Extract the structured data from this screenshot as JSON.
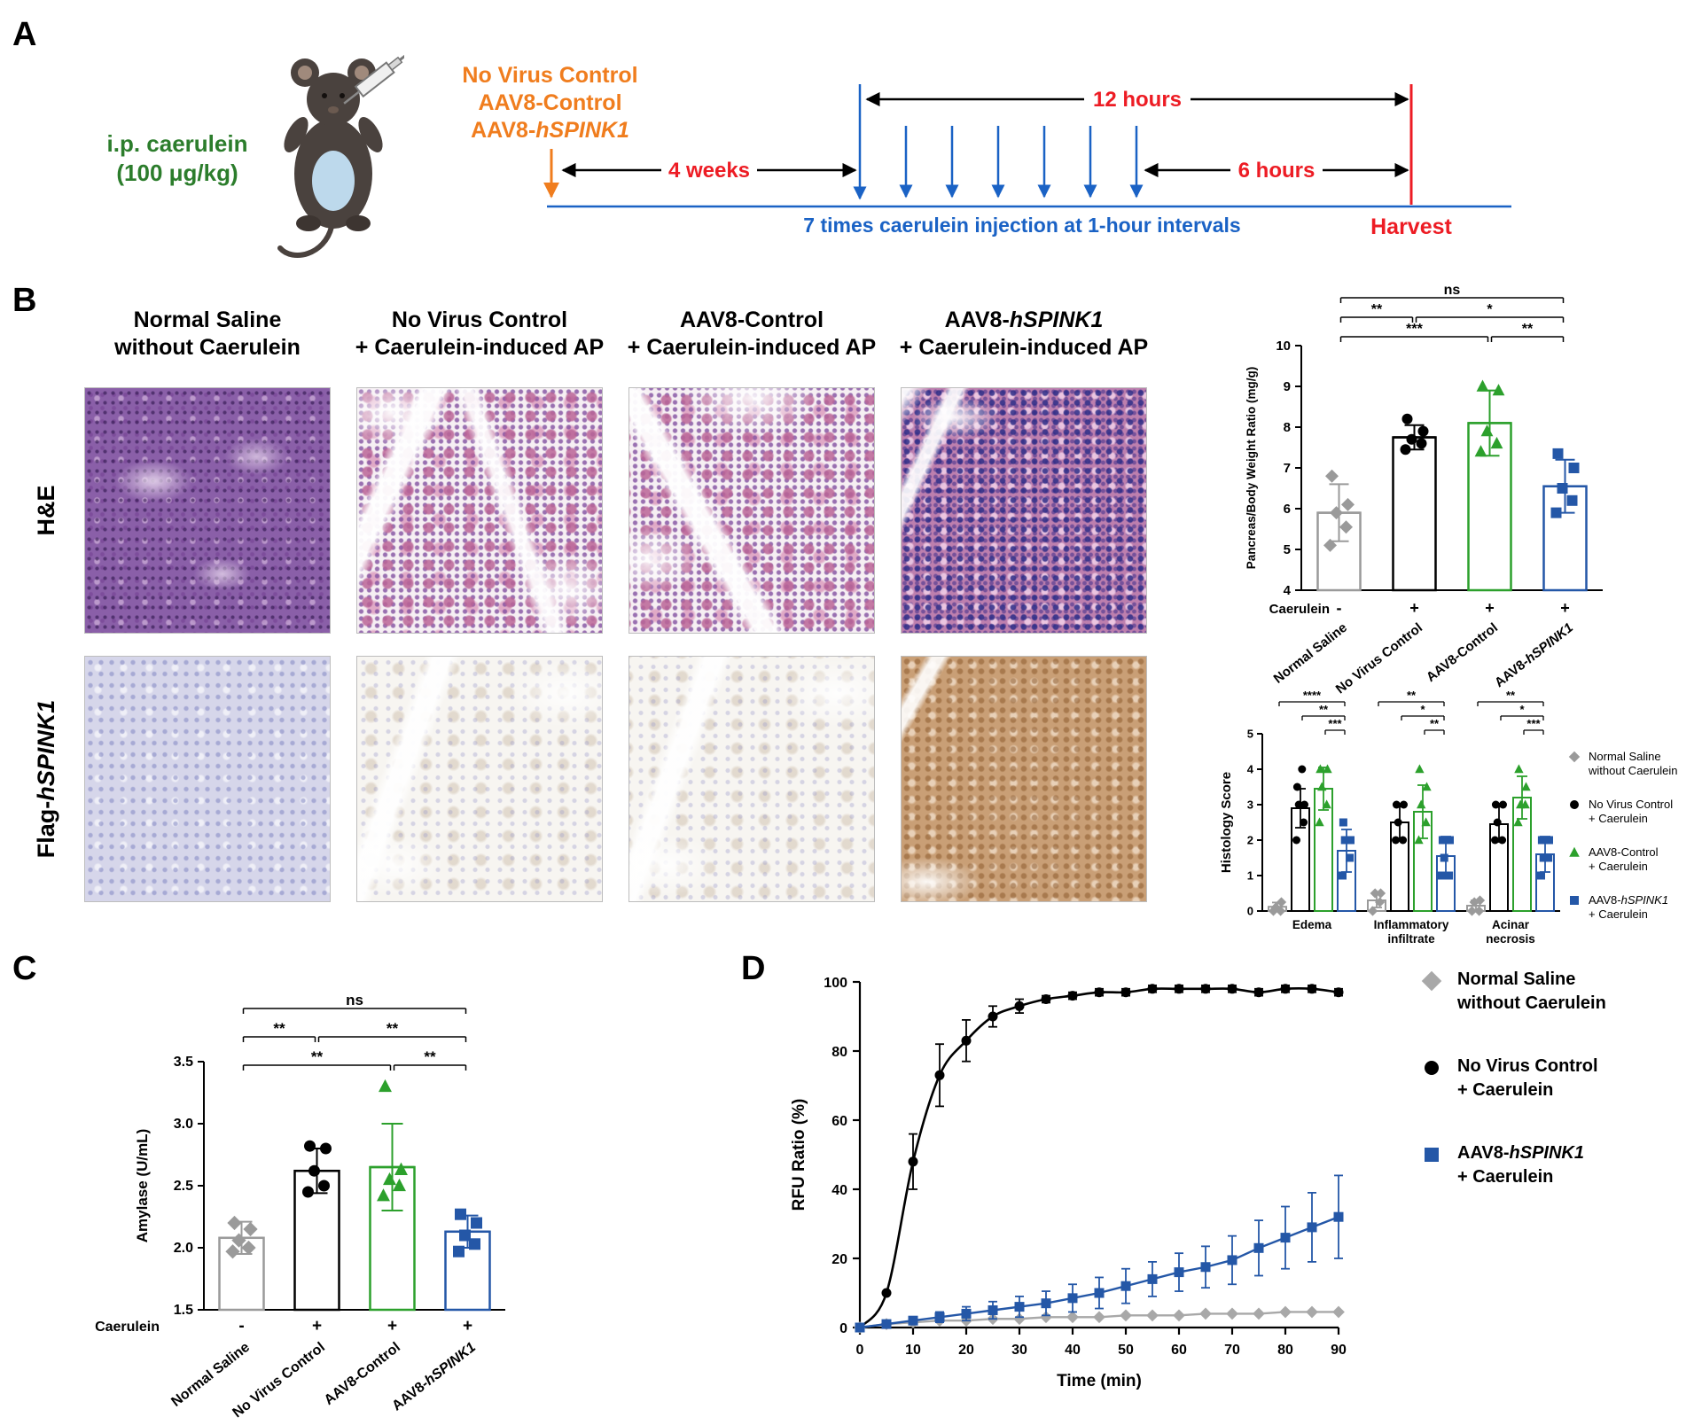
{
  "panel_a": {
    "label": "A",
    "ip_line1": "i.p. caerulein",
    "ip_line2": "(100 μg/kg)",
    "vectors": [
      "No Virus Control",
      "AAV8-Control",
      "AAV8-hSPINK1"
    ],
    "span_4w": "4 weeks",
    "span_12h": "12 hours",
    "span_6h": "6 hours",
    "injection_note": "7 times caerulein injection at 1-hour intervals",
    "harvest": "Harvest"
  },
  "panel_b": {
    "label": "B",
    "columns": [
      [
        "Normal Saline",
        "without Caerulein"
      ],
      [
        "No Virus Control",
        "+ Caerulein-induced AP"
      ],
      [
        "AAV8-Control",
        "+ Caerulein-induced AP"
      ],
      [
        "AAV8-hSPINK1",
        "+ Caerulein-induced AP"
      ]
    ],
    "rows": [
      "H&E",
      "Flag-hSPINK1"
    ]
  },
  "panel_c": {
    "label": "C"
  },
  "panel_d": {
    "label": "D"
  },
  "chart_data": [
    {
      "id": "pbw",
      "type": "bar",
      "ylabel": "Pancreas/Body Weight Ratio (mg/g)",
      "ylim": [
        4,
        10
      ],
      "yticks": [
        "4",
        "5",
        "6",
        "7",
        "8",
        "9",
        "10"
      ],
      "categories": [
        "Normal Saline",
        "No Virus Control",
        "AAV8-Control",
        "AAV8-hSPINK1"
      ],
      "colors": [
        "#9a9a9a",
        "#000000",
        "#2ca02c",
        "#2457a7"
      ],
      "markers": [
        "diamond",
        "circle",
        "triangle",
        "square"
      ],
      "values": [
        5.9,
        7.75,
        8.1,
        6.55
      ],
      "errors": [
        0.7,
        0.3,
        0.8,
        0.65
      ],
      "points": [
        [
          5.1,
          5.55,
          5.9,
          6.1,
          6.8
        ],
        [
          7.45,
          7.6,
          7.7,
          7.9,
          8.2
        ],
        [
          7.4,
          7.6,
          7.9,
          8.9,
          9.0
        ],
        [
          5.9,
          6.2,
          6.5,
          7.0,
          7.35
        ]
      ],
      "caerulein_label": "Caerulein",
      "caerulein": [
        "-",
        "+",
        "+",
        "+"
      ],
      "significance": [
        {
          "from": 0,
          "to": 3,
          "label": "ns",
          "level": 0
        },
        {
          "from": 0,
          "to": 1,
          "label": "**",
          "level": 1
        },
        {
          "from": 1,
          "to": 3,
          "label": "*",
          "level": 1
        },
        {
          "from": 0,
          "to": 2,
          "label": "***",
          "level": 2
        },
        {
          "from": 2,
          "to": 3,
          "label": "**",
          "level": 2
        }
      ]
    },
    {
      "id": "histology",
      "type": "grouped-bar",
      "ylabel": "Histology Score",
      "ylim": [
        0,
        5
      ],
      "yticks": [
        "0",
        "1",
        "2",
        "3",
        "4",
        "5"
      ],
      "groups": [
        [
          "Edema"
        ],
        [
          "Inflammatory",
          "infiltrate"
        ],
        [
          "Acinar",
          "necrosis"
        ]
      ],
      "series": [
        {
          "name": [
            "Normal Saline",
            "without Caerulein"
          ],
          "marker": "diamond",
          "color": "#9a9a9a",
          "values": [
            0.12,
            0.3,
            0.15
          ],
          "errors": [
            0.12,
            0.2,
            0.15
          ],
          "points": [
            [
              0,
              0,
              0.1,
              0.25
            ],
            [
              0,
              0.25,
              0.5,
              0.5
            ],
            [
              0,
              0,
              0.25,
              0.3
            ]
          ]
        },
        {
          "name": [
            "No Virus Control",
            "+ Caerulein"
          ],
          "marker": "circle",
          "color": "#000000",
          "values": [
            2.9,
            2.5,
            2.45
          ],
          "errors": [
            0.55,
            0.45,
            0.5
          ],
          "points": [
            [
              2,
              2.5,
              3,
              3,
              3.5,
              4
            ],
            [
              2,
              2,
              2.5,
              3,
              3
            ],
            [
              2,
              2,
              2.5,
              3,
              3
            ]
          ]
        },
        {
          "name": [
            "AAV8-Control",
            "+ Caerulein"
          ],
          "marker": "triangle",
          "color": "#2ca02c",
          "values": [
            3.45,
            2.8,
            3.2
          ],
          "errors": [
            0.6,
            0.75,
            0.6
          ],
          "points": [
            [
              2.5,
              3,
              3.5,
              4,
              4
            ],
            [
              2,
              2.5,
              3,
              3.5,
              4
            ],
            [
              2.5,
              3,
              3,
              3.5,
              4
            ]
          ]
        },
        {
          "name": [
            "AAV8-hSPINK1",
            "+ Caerulein"
          ],
          "marker": "square",
          "color": "#2457a7",
          "values": [
            1.7,
            1.55,
            1.6
          ],
          "errors": [
            0.6,
            0.55,
            0.5
          ],
          "points": [
            [
              1,
              1.5,
              2,
              2,
              2.5
            ],
            [
              1,
              1,
              1.5,
              2,
              2
            ],
            [
              1,
              1.5,
              1.5,
              2,
              2
            ]
          ]
        }
      ],
      "significance": [
        {
          "group": 0,
          "from": 0,
          "to": 3,
          "label": "****",
          "level": 0
        },
        {
          "group": 0,
          "from": 1,
          "to": 3,
          "label": "**",
          "level": 1
        },
        {
          "group": 0,
          "from": 2,
          "to": 3,
          "label": "***",
          "level": 2
        },
        {
          "group": 1,
          "from": 0,
          "to": 3,
          "label": "**",
          "level": 0
        },
        {
          "group": 1,
          "from": 1,
          "to": 3,
          "label": "*",
          "level": 1
        },
        {
          "group": 1,
          "from": 2,
          "to": 3,
          "label": "**",
          "level": 2
        },
        {
          "group": 2,
          "from": 0,
          "to": 3,
          "label": "**",
          "level": 0
        },
        {
          "group": 2,
          "from": 1,
          "to": 3,
          "label": "*",
          "level": 1
        },
        {
          "group": 2,
          "from": 2,
          "to": 3,
          "label": "***",
          "level": 2
        }
      ]
    },
    {
      "id": "amylase",
      "type": "bar",
      "ylabel": "Amylase (U/mL)",
      "ylim": [
        1.5,
        3.5
      ],
      "yticks": [
        "1.5",
        "2.0",
        "2.5",
        "3.0",
        "3.5"
      ],
      "categories": [
        "Normal Saline",
        "No Virus Control",
        "AAV8-Control",
        "AAV8-hSPINK1"
      ],
      "colors": [
        "#9a9a9a",
        "#000000",
        "#2ca02c",
        "#2457a7"
      ],
      "markers": [
        "diamond",
        "circle",
        "triangle",
        "square"
      ],
      "values": [
        2.08,
        2.62,
        2.65,
        2.13
      ],
      "errors": [
        0.13,
        0.18,
        0.35,
        0.13
      ],
      "points": [
        [
          1.97,
          2.0,
          2.06,
          2.15,
          2.2
        ],
        [
          2.45,
          2.5,
          2.62,
          2.8,
          2.82
        ],
        [
          2.42,
          2.5,
          2.55,
          2.63,
          3.3
        ],
        [
          1.97,
          2.03,
          2.1,
          2.2,
          2.27
        ]
      ],
      "caerulein_label": "Caerulein",
      "caerulein": [
        "-",
        "+",
        "+",
        "+"
      ],
      "significance": [
        {
          "from": 0,
          "to": 3,
          "label": "ns",
          "level": 0
        },
        {
          "from": 0,
          "to": 1,
          "label": "**",
          "level": 1
        },
        {
          "from": 1,
          "to": 3,
          "label": "**",
          "level": 1
        },
        {
          "from": 0,
          "to": 2,
          "label": "**",
          "level": 2
        },
        {
          "from": 2,
          "to": 3,
          "label": "**",
          "level": 2
        }
      ]
    },
    {
      "id": "rfu",
      "type": "line",
      "xlabel": "Time (min)",
      "ylabel": "RFU Ratio (%)",
      "xlim": [
        0,
        90
      ],
      "ylim": [
        0,
        100
      ],
      "xticks": [
        "0",
        "10",
        "20",
        "30",
        "40",
        "50",
        "60",
        "70",
        "80",
        "90"
      ],
      "yticks": [
        "0",
        "20",
        "40",
        "60",
        "80",
        "100"
      ],
      "series": [
        {
          "name": [
            "Normal Saline",
            "without Caerulein"
          ],
          "marker": "diamond",
          "color": "#a8a8a8",
          "x": [
            0,
            5,
            10,
            15,
            20,
            25,
            30,
            35,
            40,
            45,
            50,
            55,
            60,
            65,
            70,
            75,
            80,
            85,
            90
          ],
          "y": [
            0,
            1,
            1.5,
            2,
            2,
            2.5,
            2.5,
            3,
            3,
            3,
            3.5,
            3.5,
            3.5,
            4,
            4,
            4,
            4.5,
            4.5,
            4.5
          ]
        },
        {
          "name": [
            "No Virus Control",
            "+ Caerulein"
          ],
          "marker": "circle",
          "color": "#000000",
          "smooth": true,
          "x": [
            0,
            5,
            10,
            15,
            20,
            25,
            30,
            35,
            40,
            45,
            50,
            55,
            60,
            65,
            70,
            75,
            80,
            85,
            90
          ],
          "y": [
            0,
            10,
            48,
            73,
            83,
            90,
            93,
            95,
            96,
            97,
            97,
            98,
            98,
            98,
            98,
            97,
            98,
            98,
            97
          ],
          "errors": [
            0,
            0,
            8,
            9,
            6,
            3,
            2,
            1,
            1,
            1,
            1,
            1,
            1,
            1,
            1,
            1,
            1,
            1,
            1
          ]
        },
        {
          "name": [
            "AAV8-hSPINK1",
            "+ Caerulein"
          ],
          "marker": "square",
          "color": "#2457a7",
          "x": [
            0,
            5,
            10,
            15,
            20,
            25,
            30,
            35,
            40,
            45,
            50,
            55,
            60,
            65,
            70,
            75,
            80,
            85,
            90
          ],
          "y": [
            0,
            1,
            2,
            3,
            4,
            5,
            6,
            7,
            8.5,
            10,
            12,
            14,
            16,
            17.5,
            19.5,
            23,
            26,
            29,
            32
          ],
          "errors": [
            0,
            0.5,
            1,
            1.5,
            2,
            2.5,
            3,
            3.5,
            4,
            4.5,
            5,
            5,
            5.5,
            6,
            7,
            8,
            9,
            10,
            12
          ]
        }
      ]
    }
  ]
}
